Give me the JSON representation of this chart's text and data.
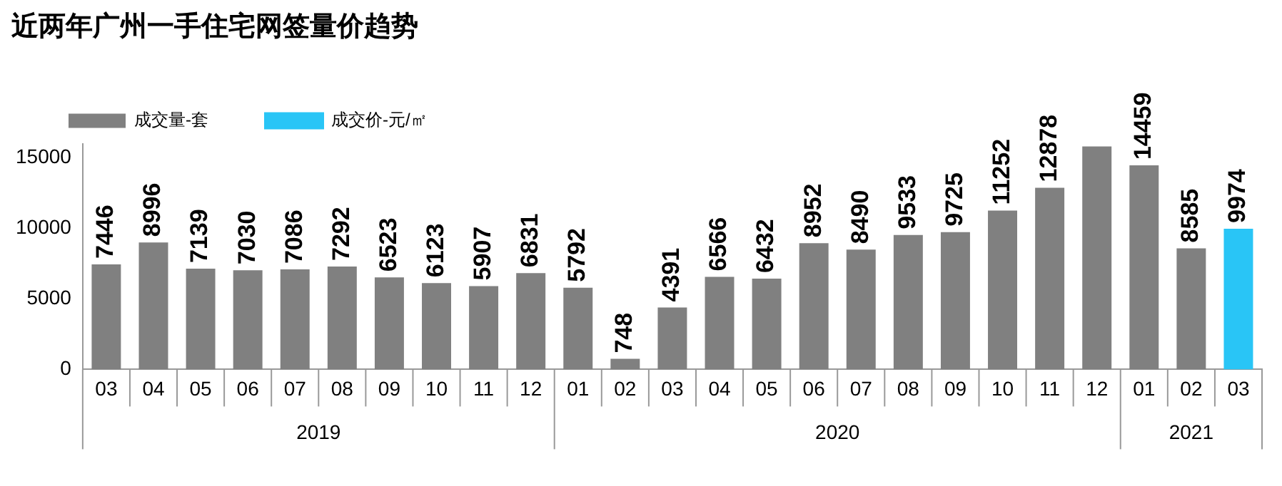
{
  "chart_data": {
    "type": "bar",
    "title": "近两年广州一手住宅网签量价趋势",
    "categories": [
      "03",
      "04",
      "05",
      "06",
      "07",
      "08",
      "09",
      "10",
      "11",
      "12",
      "01",
      "02",
      "03",
      "04",
      "05",
      "06",
      "07",
      "08",
      "09",
      "10",
      "11",
      "12",
      "01",
      "02",
      "03"
    ],
    "series": [
      {
        "name": "成交量-套",
        "color": "#808080",
        "values": [
          7446,
          8996,
          7139,
          7030,
          7086,
          7292,
          6523,
          6123,
          5907,
          6831,
          5792,
          748,
          4391,
          6566,
          6432,
          8952,
          8490,
          9533,
          9725,
          11252,
          12878,
          15800,
          14459,
          8585,
          null
        ],
        "value_labels": [
          "7446",
          "8996",
          "7139",
          "7030",
          "7086",
          "7292",
          "6523",
          "6123",
          "5907",
          "6831",
          "5792",
          "748",
          "4391",
          "6566",
          "6432",
          "8952",
          "8490",
          "9533",
          "9725",
          "11252",
          "12878",
          null,
          "14459",
          "8585",
          null
        ]
      },
      {
        "name": "成交价-元/㎡",
        "color": "#29c5f6",
        "values": [
          null,
          null,
          null,
          null,
          null,
          null,
          null,
          null,
          null,
          null,
          null,
          null,
          null,
          null,
          null,
          null,
          null,
          null,
          null,
          null,
          null,
          null,
          null,
          null,
          9974
        ],
        "value_labels": [
          null,
          null,
          null,
          null,
          null,
          null,
          null,
          null,
          null,
          null,
          null,
          null,
          null,
          null,
          null,
          null,
          null,
          null,
          null,
          null,
          null,
          null,
          null,
          null,
          "9974"
        ]
      }
    ],
    "stacked": true,
    "ylim": [
      0,
      16000
    ],
    "yticks": [
      0,
      5000,
      10000,
      15000
    ],
    "grid": false,
    "legend": "top",
    "annotations": [
      "2019",
      "2020",
      "2021"
    ]
  }
}
